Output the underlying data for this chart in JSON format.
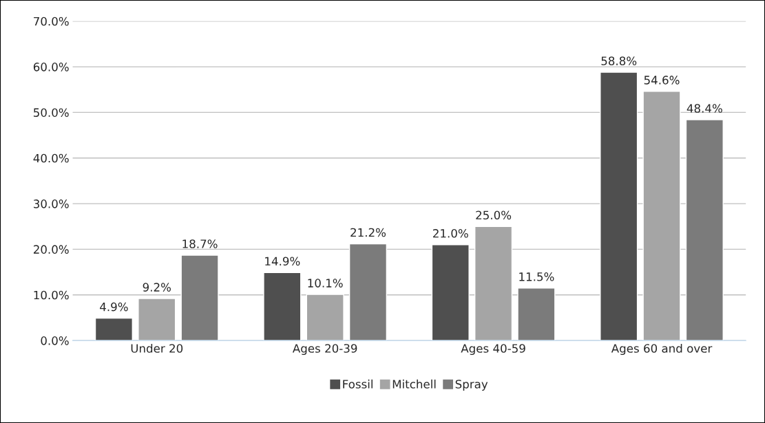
{
  "chart_data": {
    "type": "bar",
    "categories": [
      "Under 20",
      "Ages 20-39",
      "Ages 40-59",
      "Ages 60 and over"
    ],
    "series": [
      {
        "name": "Fossil",
        "color": "#4f4f4f",
        "values": [
          4.9,
          14.9,
          21.0,
          58.8
        ],
        "value_labels": [
          "4.9%",
          "14.9%",
          "21.0%",
          "58.8%"
        ]
      },
      {
        "name": "Mitchell",
        "color": "#a5a5a5",
        "values": [
          9.2,
          10.1,
          25.0,
          54.6
        ],
        "value_labels": [
          "9.2%",
          "10.1%",
          "25.0%",
          "54.6%"
        ]
      },
      {
        "name": "Spray",
        "color": "#7b7b7b",
        "values": [
          18.7,
          21.2,
          11.5,
          48.4
        ],
        "value_labels": [
          "18.7%",
          "21.2%",
          "11.5%",
          "48.4%"
        ]
      }
    ],
    "ylim": [
      0,
      70
    ],
    "yticks": [
      {
        "value": 0,
        "label": "0.0%"
      },
      {
        "value": 10,
        "label": "10.0%"
      },
      {
        "value": 20,
        "label": "20.0%"
      },
      {
        "value": 30,
        "label": "30.0%"
      },
      {
        "value": 40,
        "label": "40.0%"
      },
      {
        "value": 50,
        "label": "50.0%"
      },
      {
        "value": 60,
        "label": "60.0%"
      },
      {
        "value": 70,
        "label": "70.0%"
      }
    ],
    "grid": "y",
    "legend": "bottom"
  }
}
